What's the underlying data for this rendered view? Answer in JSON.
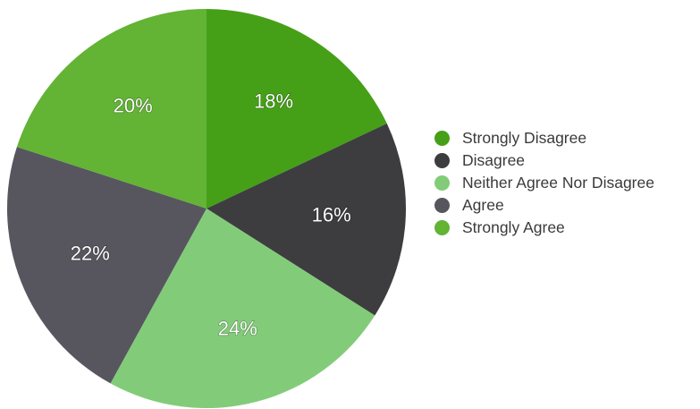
{
  "chart_data": {
    "type": "pie",
    "title": "",
    "start_angle_deg": 0,
    "direction": "clockwise",
    "legend_position": "right",
    "slices": [
      {
        "label": "Strongly Disagree",
        "value": 18,
        "display": "18%",
        "color": "#45a017"
      },
      {
        "label": "Disagree",
        "value": 16,
        "display": "16%",
        "color": "#3d3d3f"
      },
      {
        "label": "Neither Agree Nor Disagree",
        "value": 24,
        "display": "24%",
        "color": "#82cc79"
      },
      {
        "label": "Agree",
        "value": 22,
        "display": "22%",
        "color": "#57565e"
      },
      {
        "label": "Strongly Agree",
        "value": 20,
        "display": "20%",
        "color": "#63b335"
      }
    ]
  }
}
